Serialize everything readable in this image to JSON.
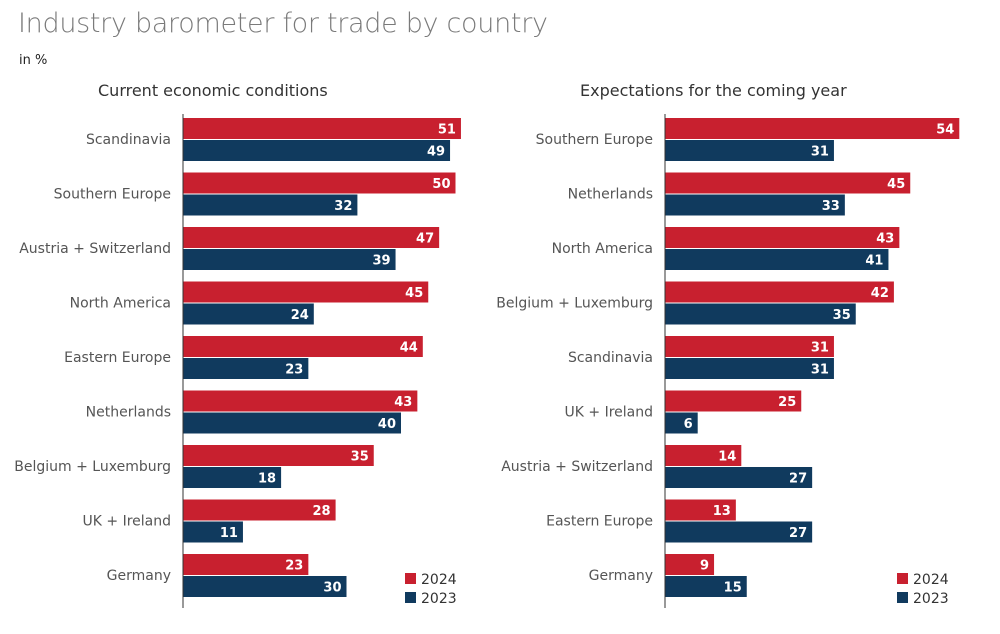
{
  "title": "Industry barometer for trade by country",
  "unit": "in %",
  "colors": {
    "2024": "#c8202f",
    "2023": "#103a5e"
  },
  "chart_data": [
    {
      "type": "bar",
      "orientation": "horizontal",
      "title": "Current economic conditions",
      "categories": [
        "Scandinavia",
        "Southern Europe",
        "Austria + Switzerland",
        "North America",
        "Eastern Europe",
        "Netherlands",
        "Belgium + Luxemburg",
        "UK + Ireland",
        "Germany"
      ],
      "series": [
        {
          "name": "2024",
          "values": [
            51,
            50,
            47,
            45,
            44,
            43,
            35,
            28,
            23
          ]
        },
        {
          "name": "2023",
          "values": [
            49,
            32,
            39,
            24,
            23,
            40,
            18,
            11,
            30
          ]
        }
      ],
      "legend": "bottom-right",
      "grid": false
    },
    {
      "type": "bar",
      "orientation": "horizontal",
      "title": "Expectations for the coming year",
      "categories": [
        "Southern Europe",
        "Netherlands",
        "North America",
        "Belgium + Luxemburg",
        "Scandinavia",
        "UK + Ireland",
        "Austria + Switzerland",
        "Eastern Europe",
        "Germany"
      ],
      "series": [
        {
          "name": "2024",
          "values": [
            54,
            45,
            43,
            42,
            31,
            25,
            14,
            13,
            9
          ]
        },
        {
          "name": "2023",
          "values": [
            31,
            33,
            41,
            35,
            31,
            6,
            27,
            27,
            15
          ]
        }
      ],
      "legend": "bottom-right",
      "grid": false
    }
  ]
}
